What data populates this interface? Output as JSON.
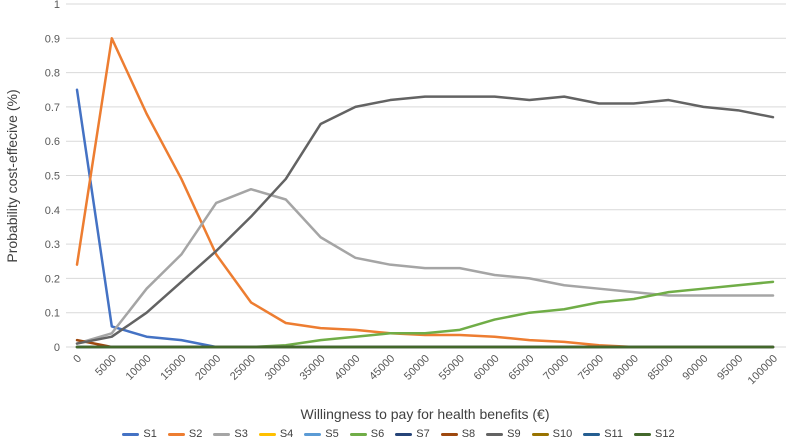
{
  "styles": {
    "background": "#FFFFFF",
    "gridline_color": "#D9D9D9",
    "tick_text_color": "#595959",
    "title_text_color": "#404040"
  },
  "chart_data": {
    "type": "line",
    "title": "",
    "xlabel": "Willingness to pay for health benefits (€)",
    "ylabel": "Probability cost-effecive (%)",
    "xlim": [
      0,
      100000
    ],
    "ylim": [
      0,
      1
    ],
    "grid": "horizontal",
    "legend_position": "bottom",
    "x_ticks": [
      0,
      5000,
      10000,
      15000,
      20000,
      25000,
      30000,
      35000,
      40000,
      45000,
      50000,
      55000,
      60000,
      65000,
      70000,
      75000,
      80000,
      85000,
      90000,
      95000,
      100000
    ],
    "x_tick_labels": [
      "0",
      "5000",
      "10000",
      "15000",
      "20000",
      "25000",
      "30000",
      "35000",
      "40000",
      "45000",
      "50000",
      "55000",
      "60000",
      "65000",
      "70000",
      "75000",
      "80000",
      "85000",
      "90000",
      "95000",
      "100000"
    ],
    "y_ticks": [
      0,
      0.1,
      0.2,
      0.3,
      0.4,
      0.5,
      0.6,
      0.7,
      0.8,
      0.9,
      1
    ],
    "y_tick_labels": [
      "0",
      "0.1",
      "0.2",
      "0.3",
      "0.4",
      "0.5",
      "0.6",
      "0.7",
      "0.8",
      "0.9",
      "1"
    ],
    "series": [
      {
        "name": "S1",
        "color": "#4472C4",
        "values": [
          0.75,
          0.06,
          0.03,
          0.02,
          0,
          0,
          0,
          0,
          0,
          0,
          0,
          0,
          0,
          0,
          0,
          0,
          0,
          0,
          0,
          0,
          0
        ]
      },
      {
        "name": "S2",
        "color": "#ED7D31",
        "values": [
          0.24,
          0.9,
          0.68,
          0.49,
          0.27,
          0.13,
          0.07,
          0.055,
          0.05,
          0.04,
          0.035,
          0.035,
          0.03,
          0.02,
          0.015,
          0.005,
          0,
          0,
          0,
          0,
          0
        ]
      },
      {
        "name": "S3",
        "color": "#A5A5A5",
        "values": [
          0.01,
          0.04,
          0.17,
          0.27,
          0.42,
          0.46,
          0.43,
          0.32,
          0.26,
          0.24,
          0.23,
          0.23,
          0.21,
          0.2,
          0.18,
          0.17,
          0.16,
          0.15,
          0.15,
          0.15,
          0.15
        ]
      },
      {
        "name": "S4",
        "color": "#FFC000",
        "values": [
          0,
          0,
          0,
          0,
          0,
          0,
          0,
          0,
          0,
          0,
          0,
          0,
          0,
          0,
          0,
          0,
          0,
          0,
          0,
          0,
          0
        ]
      },
      {
        "name": "S5",
        "color": "#5B9BD5",
        "values": [
          0,
          0,
          0,
          0,
          0,
          0,
          0,
          0,
          0,
          0,
          0,
          0,
          0,
          0,
          0,
          0,
          0,
          0,
          0,
          0,
          0
        ]
      },
      {
        "name": "S6",
        "color": "#70AD47",
        "values": [
          0,
          0,
          0,
          0,
          0,
          0,
          0.005,
          0.02,
          0.03,
          0.04,
          0.04,
          0.05,
          0.08,
          0.1,
          0.11,
          0.13,
          0.14,
          0.16,
          0.17,
          0.18,
          0.19
        ]
      },
      {
        "name": "S7",
        "color": "#264478",
        "values": [
          0,
          0,
          0,
          0,
          0,
          0,
          0,
          0,
          0,
          0,
          0,
          0,
          0,
          0,
          0,
          0,
          0,
          0,
          0,
          0,
          0
        ]
      },
      {
        "name": "S8",
        "color": "#9E480E",
        "values": [
          0.02,
          0,
          0,
          0,
          0,
          0,
          0,
          0,
          0,
          0,
          0,
          0,
          0,
          0,
          0,
          0,
          0,
          0,
          0,
          0,
          0
        ]
      },
      {
        "name": "S9",
        "color": "#636363",
        "values": [
          0.01,
          0.03,
          0.1,
          0.19,
          0.28,
          0.38,
          0.49,
          0.65,
          0.7,
          0.72,
          0.73,
          0.73,
          0.73,
          0.72,
          0.73,
          0.71,
          0.71,
          0.72,
          0.7,
          0.69,
          0.67
        ]
      },
      {
        "name": "S10",
        "color": "#997300",
        "values": [
          0,
          0,
          0,
          0,
          0,
          0,
          0,
          0,
          0,
          0,
          0,
          0,
          0,
          0,
          0,
          0,
          0,
          0,
          0,
          0,
          0
        ]
      },
      {
        "name": "S11",
        "color": "#255E91",
        "values": [
          0,
          0,
          0,
          0,
          0,
          0,
          0,
          0,
          0,
          0,
          0,
          0,
          0,
          0,
          0,
          0,
          0,
          0,
          0,
          0,
          0
        ]
      },
      {
        "name": "S12",
        "color": "#43682B",
        "values": [
          0,
          0,
          0,
          0,
          0,
          0,
          0,
          0,
          0,
          0,
          0,
          0,
          0,
          0,
          0,
          0,
          0,
          0,
          0,
          0,
          0
        ]
      }
    ]
  }
}
